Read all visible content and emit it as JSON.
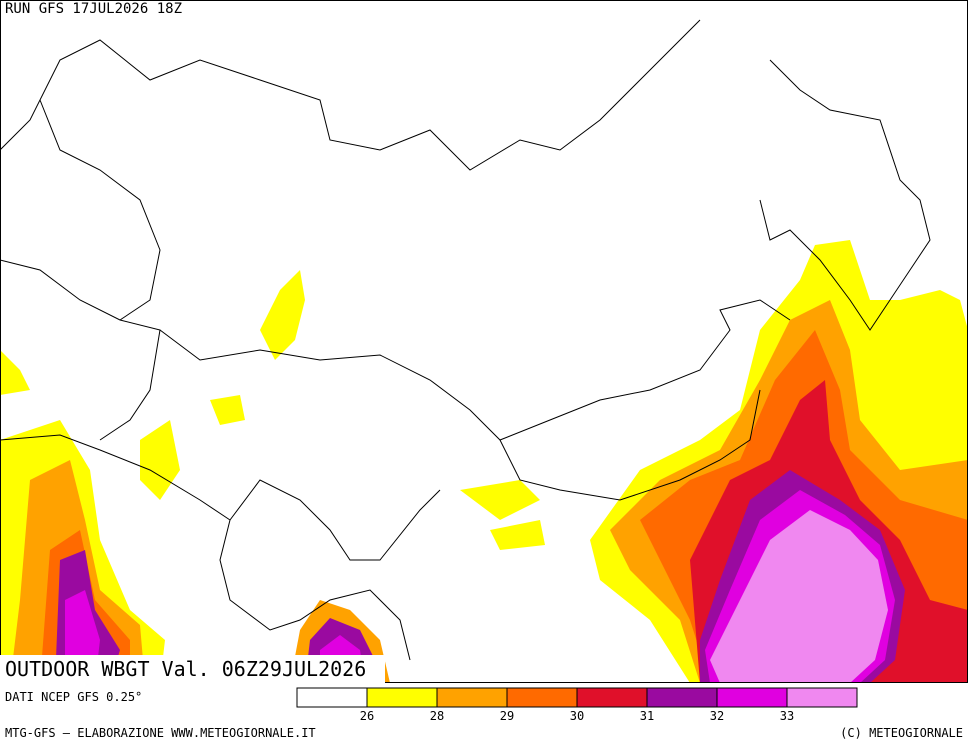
{
  "header": {
    "run": "RUN GFS 17JUL2026 18Z"
  },
  "title": "OUTDOOR WBGT Val. 06Z29JUL2026",
  "source": "DATI NCEP GFS 0.25°",
  "legend": {
    "colors": [
      "#ffffff",
      "#ffff00",
      "#ffa200",
      "#ff6a00",
      "#e0102a",
      "#9a0aa0",
      "#e000e0",
      "#f088f0"
    ],
    "ticks": [
      26,
      28,
      29,
      30,
      31,
      32,
      33
    ]
  },
  "footer": {
    "left": "MTG-GFS – ELABORAZIONE WWW.METEOGIORNALE.IT",
    "right": "(C) METEOGIORNALE"
  }
}
